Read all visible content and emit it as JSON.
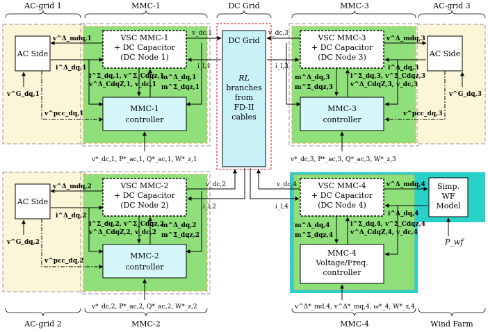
{
  "headers": {
    "ac1": "AC-grid 1",
    "mmc1": "MMC-1",
    "dc": "DC Grid",
    "mmc3": "MMC-3",
    "ac3": "AC-grid 3",
    "ac2": "AC-grid 2",
    "mmc2": "MMC-2",
    "mmc4": "MMC-4",
    "wf": "Wind Farm"
  },
  "ac_side": "AC Side",
  "vsc1": [
    "VSC MMC-1",
    "+ DC Capacitor",
    "(DC Node 1)"
  ],
  "vsc2": [
    "VSC MMC-2",
    "+ DC Capacitor",
    "(DC Node 2)"
  ],
  "vsc3": [
    "VSC MMC-3",
    "+ DC Capacitor",
    "(DC Node 3)"
  ],
  "vsc4": [
    "VSC MMC-4",
    "+ DC Capacitor",
    "(DC Node 4)"
  ],
  "ctrl1": [
    "MMC-1",
    "controller"
  ],
  "ctrl2": [
    "MMC-2",
    "controller"
  ],
  "ctrl3": [
    "MMC-3",
    "controller"
  ],
  "ctrl4": [
    "MMC-4",
    "Voltage/Freq.",
    "controller"
  ],
  "dcgrid": {
    "title": "DC Grid",
    "desc": [
      "RL",
      "branches",
      "from",
      "FD-II",
      "cables"
    ]
  },
  "wf_model": [
    "Simp.",
    "WF",
    "Model"
  ],
  "pwf": "P_wf",
  "signals": {
    "vdc1": "v_dc,1",
    "il1": "i_l,1",
    "vdc2": "v_dc,2",
    "il2": "i_l,2",
    "vdc3": "v_dc,3",
    "il3": "i_l,3",
    "vdc4": "v_dc,4",
    "il4": "i_l,4",
    "vmdq1": "v^Δ_mdq,1",
    "idq1": "i^Δ_dq,1",
    "vG1": "v^G_dq,1",
    "vpcc1": "v^pcc_dq,1",
    "vmdq2": "v^Δ_mdq,2",
    "idq2": "i^Δ_dq,2",
    "vG2": "v^G_dq,2",
    "vpcc2": "v^pcc_dq,2",
    "vmdq3": "v^Δ_mdq,3",
    "idq3": "i^Δ_dq,3",
    "vG3": "v^G_dq,3",
    "vpcc3": "v^pcc_dq,3",
    "vmdq4": "v^Δ_mdq,4",
    "idq4": "i^Δ_dq,4",
    "m1a": "i^Σ_dq,1, v^Σ_Cdqz,1",
    "m1b": "v^Δ_CdqZ,1, v_dc,1",
    "m1c": "m^Δ_dq,1",
    "m1d": "m^Σ_dqz,1",
    "m2a": "i^Σ_dq,2, v^Σ_Cdqz,2",
    "m2b": "v^Δ_CdqZ,2, v_dc,2",
    "m2c": "m^Δ_dq,2",
    "m2d": "m^Σ_dqz,2",
    "m3a": "m^Δ_dq,3",
    "m3b": "m^Σ_dqz,3",
    "m3c": "i^Σ_dq,3, v^Σ_Cdqz,3",
    "m3d": "v^Δ_CdqZ,3, v_dc,3",
    "m4a": "m^Δ_dq,4",
    "m4b": "m^Σ_dqz,4",
    "m4c": "i^Σ_dq,4, v^Σ_Cdqz,4",
    "m4d": "v^Δ_CdqZ,4, v_dc,4",
    "ref1": "v*_dc,1, P*_ac,1, Q*_ac,1, W*_z,1",
    "ref2": "v*_dc,2, P*_ac,2, Q*_ac,2, W*_z,2",
    "ref3": "v*_dc,3, P*_ac,3, Q*_ac,3, W*_z,3",
    "ref4": "v^Δ*_md,4, v^Δ*_mq,4, ω*_4, W*_z,4"
  },
  "colors": {
    "acgrid": "#fbf6d8",
    "mmc": "#8fe07a",
    "box": "#d5f7f9",
    "dcbox": "#c8f1f8",
    "teal": "#2ad1c9",
    "dashRed": "#e03a3a",
    "dashGray": "#a8a8a8"
  }
}
